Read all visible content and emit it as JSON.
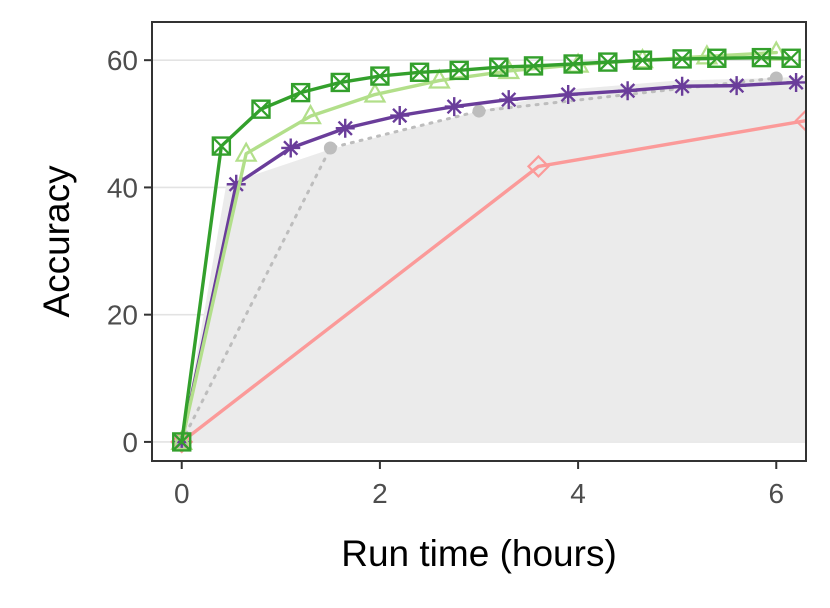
{
  "chart_data": {
    "type": "line",
    "title": "",
    "xlabel": "Run time (hours)",
    "ylabel": "Accuracy",
    "xlim": [
      -0.3,
      6.3
    ],
    "ylim": [
      -3,
      66
    ],
    "x_ticks": [
      0,
      2,
      4,
      6
    ],
    "y_ticks": [
      0,
      20,
      40,
      60
    ],
    "grid": "horizontal major",
    "legend": "none",
    "background_area": {
      "color": "#ebebeb",
      "x": [
        0,
        0.45,
        1.5,
        3.0,
        4.0,
        5.0,
        6.0,
        6.3
      ],
      "y": [
        0,
        40.5,
        46.0,
        52.0,
        55.5,
        56.8,
        57.2,
        57.5
      ]
    },
    "series": [
      {
        "marker": "dot",
        "color": "#bdbdbd",
        "line_style": "dotted",
        "x": [
          0,
          1.5,
          3.0,
          6.0
        ],
        "y": [
          0,
          46.2,
          52.0,
          57.2
        ]
      },
      {
        "marker": "diamond",
        "color": "#fb9a99",
        "line_style": "solid",
        "x": [
          0,
          3.6,
          6.3
        ],
        "y": [
          0,
          43.3,
          50.5
        ]
      },
      {
        "marker": "asterisk",
        "color": "#6a3d9a",
        "line_style": "solid",
        "x": [
          0,
          0.55,
          1.1,
          1.65,
          2.2,
          2.75,
          3.3,
          3.9,
          4.5,
          5.05,
          5.6,
          6.2
        ],
        "y": [
          0,
          40.5,
          46.2,
          49.3,
          51.3,
          52.7,
          53.8,
          54.6,
          55.2,
          55.9,
          56.0,
          56.5
        ]
      },
      {
        "marker": "triangle",
        "color": "#b2df8a",
        "line_style": "solid",
        "x": [
          0,
          0.65,
          1.3,
          1.95,
          2.6,
          3.3,
          4.0,
          4.65,
          5.3,
          6.0
        ],
        "y": [
          0,
          45.3,
          51.2,
          54.6,
          56.8,
          58.3,
          59.3,
          60.0,
          60.6,
          61.2
        ]
      },
      {
        "marker": "square-x",
        "color": "#33a02c",
        "line_style": "solid",
        "x": [
          0,
          0.4,
          0.8,
          1.2,
          1.6,
          2.0,
          2.4,
          2.8,
          3.2,
          3.55,
          3.95,
          4.3,
          4.65,
          5.05,
          5.4,
          5.85,
          6.15
        ],
        "y": [
          0,
          46.5,
          52.3,
          54.9,
          56.5,
          57.5,
          58.1,
          58.4,
          58.9,
          59.1,
          59.4,
          59.7,
          60.0,
          60.2,
          60.3,
          60.4,
          60.3
        ]
      }
    ]
  }
}
